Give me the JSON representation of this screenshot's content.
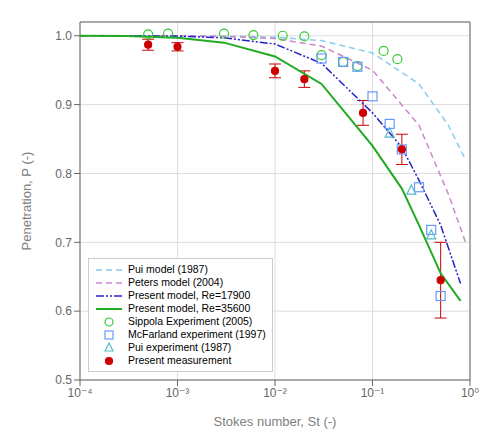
{
  "chart_data": {
    "type": "line",
    "xlabel": "Stokes number, St (-)",
    "ylabel": "Penetration, P (-)",
    "log": "x",
    "grid": true,
    "legend": "lower left",
    "xlim": [
      0.0001,
      1.0
    ],
    "xticks": [
      {
        "value": 0.0001,
        "label": "10⁻⁴"
      },
      {
        "value": 0.001,
        "label": "10⁻³"
      },
      {
        "value": 0.01,
        "label": "10⁻²"
      },
      {
        "value": 0.1,
        "label": "10⁻¹"
      },
      {
        "value": 1.0,
        "label": "10⁰"
      }
    ],
    "ylim": [
      0.5,
      1.02
    ],
    "yticks": [
      0.5,
      0.6,
      0.7,
      0.8,
      0.9,
      {
        "value": 1.0,
        "label": "1.0"
      }
    ],
    "series": [
      {
        "name": "Pui model (1987)",
        "type": "line",
        "line_style": "dashed",
        "color": "#88ccee",
        "x": [
          0.0001,
          0.0003,
          0.001,
          0.003,
          0.01,
          0.03,
          0.1,
          0.3,
          0.6,
          0.9
        ],
        "values": [
          1.0,
          1.0,
          1.0,
          0.9995,
          0.998,
          0.993,
          0.975,
          0.93,
          0.87,
          0.82
        ]
      },
      {
        "name": "Peters model (2004)",
        "type": "line",
        "line_style": "dashed",
        "color": "#cc88cc",
        "x": [
          0.0001,
          0.0003,
          0.001,
          0.003,
          0.01,
          0.03,
          0.1,
          0.3,
          0.6,
          0.9
        ],
        "values": [
          1.0,
          1.0,
          1.0,
          0.999,
          0.996,
          0.985,
          0.95,
          0.87,
          0.77,
          0.7
        ]
      },
      {
        "name": "Present model, Re=17900",
        "type": "line",
        "line_style": "dashdotdot",
        "color": "#2222cc",
        "x": [
          0.0001,
          0.0003,
          0.001,
          0.003,
          0.01,
          0.03,
          0.1,
          0.2,
          0.3,
          0.5,
          0.8
        ],
        "values": [
          1.0,
          1.0,
          0.9995,
          0.997,
          0.988,
          0.96,
          0.888,
          0.838,
          0.79,
          0.725,
          0.64
        ]
      },
      {
        "name": "Present model, Re=35600",
        "type": "line",
        "line_style": "solid",
        "color": "#22aa22",
        "x": [
          0.0001,
          0.0003,
          0.001,
          0.003,
          0.01,
          0.03,
          0.1,
          0.2,
          0.3,
          0.5,
          0.8
        ],
        "values": [
          1.0,
          0.9998,
          0.997,
          0.99,
          0.97,
          0.93,
          0.84,
          0.778,
          0.725,
          0.655,
          0.615
        ]
      },
      {
        "name": "Sippola Experiment (2005)",
        "type": "scatter",
        "marker": "open_circle",
        "color": "#33cc33",
        "x": [
          0.0005,
          0.0008,
          0.003,
          0.006,
          0.012,
          0.02,
          0.03,
          0.05,
          0.07,
          0.13,
          0.18
        ],
        "values": [
          1.002,
          1.003,
          1.003,
          1.001,
          1.0,
          0.999,
          0.972,
          0.962,
          0.956,
          0.978,
          0.966
        ]
      },
      {
        "name": "McFarland experiment (1997)",
        "type": "scatter",
        "marker": "open_square",
        "color": "#6699ff",
        "x": [
          0.03,
          0.05,
          0.07,
          0.1,
          0.15,
          0.2,
          0.3,
          0.4,
          0.5
        ],
        "values": [
          0.967,
          0.962,
          0.955,
          0.912,
          0.872,
          0.835,
          0.78,
          0.718,
          0.622
        ]
      },
      {
        "name": "Pui experiment (1987)",
        "type": "scatter",
        "marker": "open_triangle",
        "color": "#55bbcc",
        "x": [
          0.15,
          0.25,
          0.4
        ],
        "values": [
          0.858,
          0.775,
          0.71
        ]
      },
      {
        "name": "Present measurement",
        "type": "scatter",
        "marker": "circle",
        "color": "#cc0000",
        "x": [
          0.0005,
          0.001,
          0.01,
          0.02,
          0.08,
          0.2,
          0.5
        ],
        "values": [
          0.987,
          0.984,
          0.949,
          0.937,
          0.888,
          0.835,
          0.645
        ],
        "yerr": [
          0.008,
          0.006,
          0.01,
          0.012,
          0.018,
          0.022,
          0.055
        ]
      }
    ]
  }
}
